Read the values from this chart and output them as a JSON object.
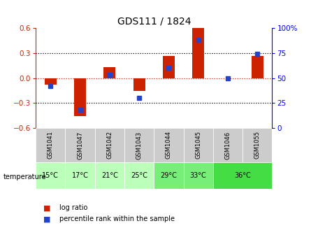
{
  "title": "GDS111 / 1824",
  "samples": [
    "GSM1041",
    "GSM1047",
    "GSM1042",
    "GSM1043",
    "GSM1044",
    "GSM1045",
    "GSM1046",
    "GSM1055"
  ],
  "temp_labels_per_sample": [
    "15°C",
    "17°C",
    "21°C",
    "25°C",
    "29°C",
    "33°C",
    "36°C",
    "36°C"
  ],
  "log_ratio": [
    -0.08,
    -0.46,
    0.13,
    -0.15,
    0.27,
    0.6,
    0.0,
    0.27
  ],
  "percentile_rank": [
    42,
    18,
    53,
    30,
    60,
    88,
    50,
    74
  ],
  "ylim_left": [
    -0.6,
    0.6
  ],
  "ylim_right": [
    0,
    100
  ],
  "left_yticks": [
    -0.6,
    -0.3,
    0.0,
    0.3,
    0.6
  ],
  "right_yticks": [
    0,
    25,
    50,
    75,
    100
  ],
  "bar_color_red": "#cc2200",
  "bar_color_blue": "#2244cc",
  "zero_line_color": "#cc2200",
  "sample_bg_color": "#cccccc",
  "temp_colors": {
    "15°C": "#bbffbb",
    "17°C": "#bbffbb",
    "21°C": "#bbffbb",
    "25°C": "#bbffbb",
    "29°C": "#77ee77",
    "33°C": "#77ee77",
    "36°C": "#44dd44"
  }
}
